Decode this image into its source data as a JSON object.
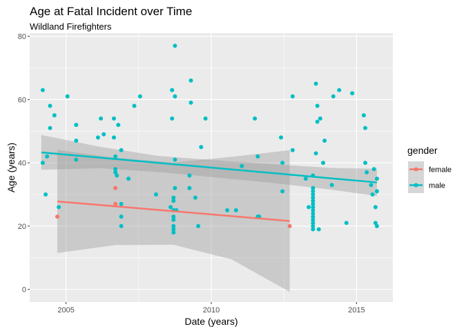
{
  "chart_data": {
    "type": "scatter",
    "title": "Age at Fatal Incident over Time",
    "subtitle": "Wildland Firefighters",
    "xlabel": "Date (years)",
    "ylabel": "Age (years)",
    "xlim": [
      2003.75,
      2016.25
    ],
    "ylim": [
      -4,
      81
    ],
    "x_ticks": [
      2005,
      2010,
      2015
    ],
    "x_tick_labels": [
      "2005",
      "2010",
      "2015"
    ],
    "y_ticks": [
      0,
      20,
      40,
      60,
      80
    ],
    "y_tick_labels": [
      "0",
      "20",
      "40",
      "60",
      "80"
    ],
    "x_minor_ticks": [
      2007.5,
      2012.5
    ],
    "y_minor_ticks": [
      10,
      30,
      50,
      70
    ],
    "grid": true,
    "background": "#EBEBEB",
    "legend": {
      "title": "gender",
      "position": "right"
    },
    "series": [
      {
        "name": "female",
        "color": "#F8766D",
        "points": [
          [
            2004.7,
            23
          ],
          [
            2006.7,
            32
          ],
          [
            2006.7,
            27
          ],
          [
            2012.7,
            20
          ]
        ],
        "trend": {
          "x": [
            2004.7,
            2012.7
          ],
          "y": [
            27.8,
            21.6
          ]
        },
        "ribbon": {
          "x": [
            2004.7,
            2006.7,
            2008.7,
            2010.7,
            2012.7
          ],
          "lower": [
            11.5,
            14.0,
            14.1,
            9.5,
            -0.8
          ],
          "upper": [
            44.1,
            41.6,
            40.1,
            41.9,
            44.0
          ]
        }
      },
      {
        "name": "male",
        "color": "#00BFC4",
        "points": [
          [
            2004.2,
            63
          ],
          [
            2004.2,
            40
          ],
          [
            2004.3,
            30
          ],
          [
            2004.35,
            42
          ],
          [
            2004.45,
            51
          ],
          [
            2004.45,
            58
          ],
          [
            2004.6,
            55
          ],
          [
            2004.75,
            26
          ],
          [
            2005.05,
            61
          ],
          [
            2005.35,
            52
          ],
          [
            2005.35,
            47
          ],
          [
            2005.35,
            41
          ],
          [
            2006.1,
            48
          ],
          [
            2006.2,
            54
          ],
          [
            2006.3,
            49
          ],
          [
            2006.65,
            54
          ],
          [
            2006.65,
            48
          ],
          [
            2006.7,
            42
          ],
          [
            2006.7,
            38
          ],
          [
            2006.7,
            37
          ],
          [
            2006.75,
            36
          ],
          [
            2006.8,
            52
          ],
          [
            2006.9,
            44
          ],
          [
            2006.9,
            27
          ],
          [
            2006.9,
            23
          ],
          [
            2006.9,
            20
          ],
          [
            2007.15,
            35
          ],
          [
            2007.35,
            58
          ],
          [
            2007.55,
            61
          ],
          [
            2008.1,
            30
          ],
          [
            2008.6,
            26
          ],
          [
            2008.65,
            63
          ],
          [
            2008.65,
            54
          ],
          [
            2008.7,
            18
          ],
          [
            2008.7,
            19
          ],
          [
            2008.7,
            20
          ],
          [
            2008.7,
            22
          ],
          [
            2008.7,
            23
          ],
          [
            2008.7,
            25
          ],
          [
            2008.7,
            28
          ],
          [
            2008.7,
            29
          ],
          [
            2008.75,
            77
          ],
          [
            2008.75,
            61
          ],
          [
            2008.75,
            41
          ],
          [
            2008.75,
            32
          ],
          [
            2008.8,
            25
          ],
          [
            2009.25,
            36
          ],
          [
            2009.25,
            32
          ],
          [
            2009.3,
            66
          ],
          [
            2009.3,
            59
          ],
          [
            2009.45,
            29
          ],
          [
            2009.55,
            20
          ],
          [
            2009.65,
            45
          ],
          [
            2009.8,
            54
          ],
          [
            2010.55,
            25
          ],
          [
            2010.85,
            25
          ],
          [
            2011.05,
            39
          ],
          [
            2011.5,
            54
          ],
          [
            2011.6,
            42
          ],
          [
            2011.6,
            23
          ],
          [
            2011.65,
            23
          ],
          [
            2012.4,
            48
          ],
          [
            2012.45,
            31
          ],
          [
            2012.45,
            40
          ],
          [
            2012.8,
            44
          ],
          [
            2012.8,
            61
          ],
          [
            2013.25,
            35
          ],
          [
            2013.35,
            26
          ],
          [
            2013.5,
            19
          ],
          [
            2013.5,
            20
          ],
          [
            2013.5,
            21
          ],
          [
            2013.5,
            22
          ],
          [
            2013.5,
            23
          ],
          [
            2013.5,
            24
          ],
          [
            2013.5,
            25
          ],
          [
            2013.5,
            26
          ],
          [
            2013.5,
            27
          ],
          [
            2013.5,
            28
          ],
          [
            2013.5,
            29
          ],
          [
            2013.5,
            30
          ],
          [
            2013.5,
            31
          ],
          [
            2013.5,
            32
          ],
          [
            2013.5,
            36
          ],
          [
            2013.6,
            65
          ],
          [
            2013.6,
            43
          ],
          [
            2013.65,
            58
          ],
          [
            2013.65,
            53
          ],
          [
            2013.7,
            19
          ],
          [
            2013.75,
            54
          ],
          [
            2013.85,
            40
          ],
          [
            2013.9,
            47
          ],
          [
            2014.15,
            33
          ],
          [
            2014.2,
            61
          ],
          [
            2014.4,
            63
          ],
          [
            2014.65,
            21
          ],
          [
            2014.85,
            62
          ],
          [
            2015.25,
            55
          ],
          [
            2015.3,
            51
          ],
          [
            2015.3,
            40
          ],
          [
            2015.35,
            37
          ],
          [
            2015.5,
            33
          ],
          [
            2015.55,
            30
          ],
          [
            2015.6,
            38
          ],
          [
            2015.65,
            26
          ],
          [
            2015.65,
            21
          ],
          [
            2015.7,
            20
          ],
          [
            2015.7,
            31
          ],
          [
            2015.7,
            35
          ]
        ],
        "trend": {
          "x": [
            2004.15,
            2015.7
          ],
          "y": [
            43.3,
            33.8
          ]
        },
        "ribbon": {
          "x": [
            2004.15,
            2006.15,
            2008.15,
            2010.15,
            2012.15,
            2014.15,
            2015.7
          ],
          "lower": [
            37.8,
            38.3,
            37.1,
            35.4,
            33.6,
            31.5,
            29.5
          ],
          "upper": [
            48.8,
            45.1,
            42.2,
            40.8,
            39.5,
            38.4,
            38.1
          ]
        }
      }
    ]
  }
}
